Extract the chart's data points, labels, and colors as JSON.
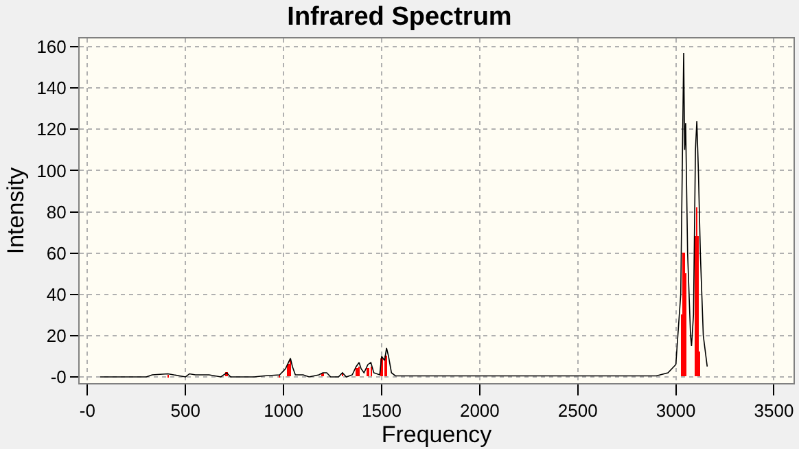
{
  "chart_data": {
    "type": "line",
    "title": "Infrared Spectrum",
    "xlabel": "Frequency",
    "ylabel": "Intensity",
    "xlim": [
      -40,
      3600
    ],
    "ylim": [
      -3,
      164
    ],
    "xticks": [
      {
        "value": 0,
        "label": "-0"
      },
      500,
      1000,
      1500,
      2000,
      2500,
      3000,
      3500
    ],
    "yticks": [
      {
        "value": 0,
        "label": "-0"
      },
      20,
      40,
      60,
      80,
      100,
      120,
      140,
      160
    ],
    "grid": true,
    "marker": "none",
    "line_style": "solid",
    "series": [
      {
        "type": "bar",
        "color": "#ff0000",
        "x": [
          410,
          710,
          980,
          1025,
          1035,
          1200,
          1300,
          1375,
          1385,
          1430,
          1446,
          1500,
          1520,
          3030,
          3039,
          3050,
          3098,
          3105,
          3113,
          3120
        ],
        "values": [
          1,
          2,
          1,
          6,
          8,
          1.5,
          1.5,
          4,
          5,
          4,
          5,
          9,
          10,
          30,
          60,
          50,
          68,
          82,
          68,
          12
        ]
      },
      {
        "color": "#000000",
        "x": [
          65,
          300,
          330,
          410,
          470,
          500,
          520,
          550,
          620,
          680,
          710,
          730,
          850,
          900,
          980,
          1010,
          1025,
          1035,
          1045,
          1060,
          1100,
          1130,
          1180,
          1200,
          1220,
          1240,
          1280,
          1300,
          1320,
          1350,
          1370,
          1385,
          1395,
          1410,
          1430,
          1445,
          1460,
          1490,
          1500,
          1515,
          1525,
          1535,
          1550,
          1570,
          2000,
          2900,
          2960,
          3000,
          3025,
          3040,
          3045,
          3050,
          3060,
          3075,
          3080,
          3090,
          3100,
          3107,
          3115,
          3125,
          3140,
          3160
        ],
        "values": [
          0,
          0,
          1,
          1.5,
          0.5,
          0,
          1.5,
          1,
          1,
          0,
          2,
          0,
          0,
          0.5,
          1,
          4,
          7,
          9,
          5,
          1,
          1,
          0,
          1,
          2,
          2,
          0,
          0,
          2,
          0,
          1,
          5,
          7,
          4,
          2,
          6,
          7,
          2,
          1,
          10,
          8,
          14,
          10,
          2,
          0.5,
          0.5,
          0.5,
          2,
          6,
          40,
          157,
          110,
          123,
          60,
          20,
          15,
          30,
          110,
          124,
          100,
          60,
          20,
          5
        ]
      }
    ]
  }
}
